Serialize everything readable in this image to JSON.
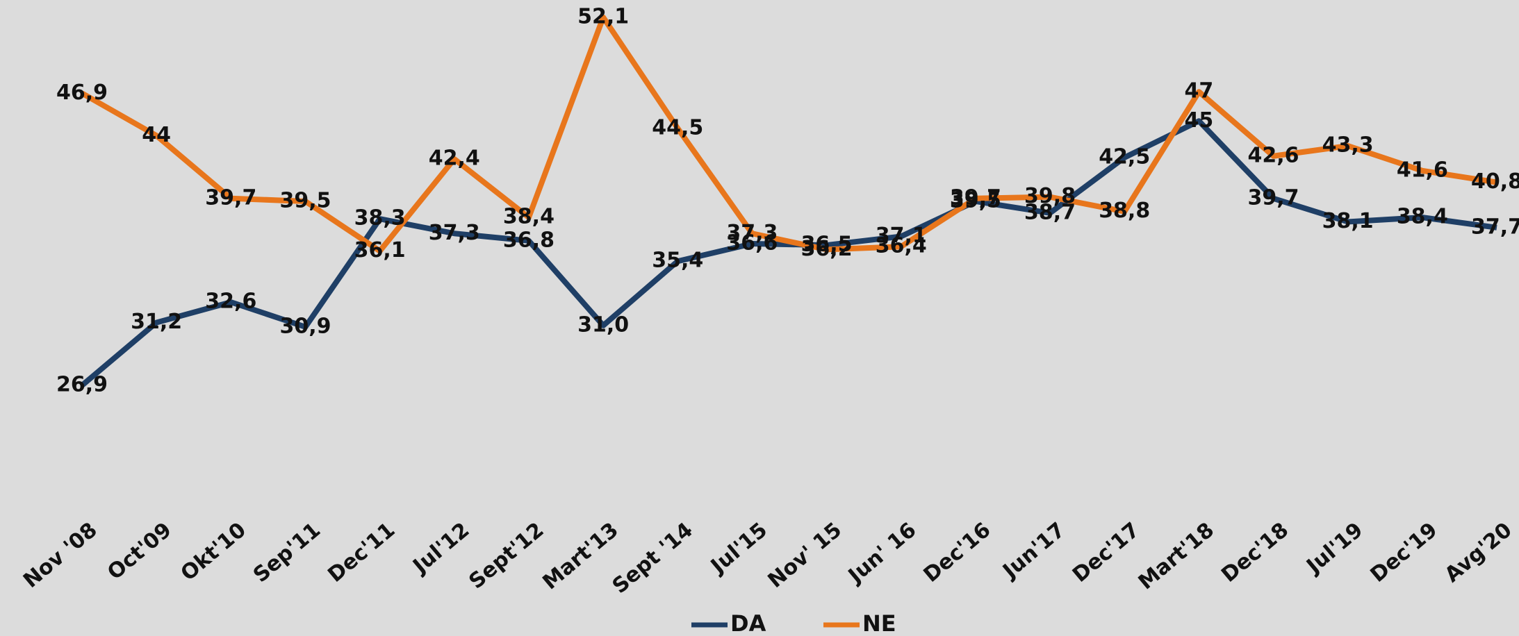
{
  "chart_data": {
    "type": "line",
    "categories": [
      "Nov '08",
      "Oct'09",
      "Okt'10",
      "Sep'11",
      "Dec'11",
      "Jul'12",
      "Sept'12",
      "Mart'13",
      "Sept '14",
      "Jul'15",
      "Nov' 15",
      "Jun' 16",
      "Dec'16",
      "Jun'17",
      "Dec'17",
      "Mart'18",
      "Dec'18",
      "Jul'19",
      "Dec'19",
      "Avg'20"
    ],
    "series": [
      {
        "name": "DA",
        "color": "#1f3f66",
        "values": [
          26.9,
          31.2,
          32.6,
          30.9,
          38.3,
          37.3,
          36.8,
          31.0,
          35.4,
          36.6,
          36.5,
          37.1,
          39.5,
          38.7,
          42.5,
          45,
          39.7,
          38.1,
          38.4,
          37.7
        ],
        "value_labels": [
          "26,9",
          "31,2",
          "32,6",
          "30,9",
          "38,3",
          "37,3",
          "36,8",
          "31,0",
          "35,4",
          "36,6",
          "36,5",
          "37,1",
          "39,5",
          "38,7",
          "42,5",
          "45",
          "39,7",
          "38,1",
          "38,4",
          "37,7"
        ]
      },
      {
        "name": "NE",
        "color": "#e8761c",
        "values": [
          46.9,
          44,
          39.7,
          39.5,
          36.1,
          42.4,
          38.4,
          52.1,
          44.5,
          37.3,
          36.2,
          36.4,
          39.7,
          39.8,
          38.8,
          47,
          42.6,
          43.3,
          41.6,
          40.8
        ],
        "value_labels": [
          "46,9",
          "44",
          "39,7",
          "39,5",
          "36,1",
          "42,4",
          "38,4",
          "52,1",
          "44,5",
          "37,3",
          "36,2",
          "36,4",
          "39,7",
          "39,8",
          "38,8",
          "47",
          "42,6",
          "43,3",
          "41,6",
          "40,8"
        ]
      }
    ],
    "ylim": [
      25,
      53
    ],
    "legend": "bottom"
  }
}
